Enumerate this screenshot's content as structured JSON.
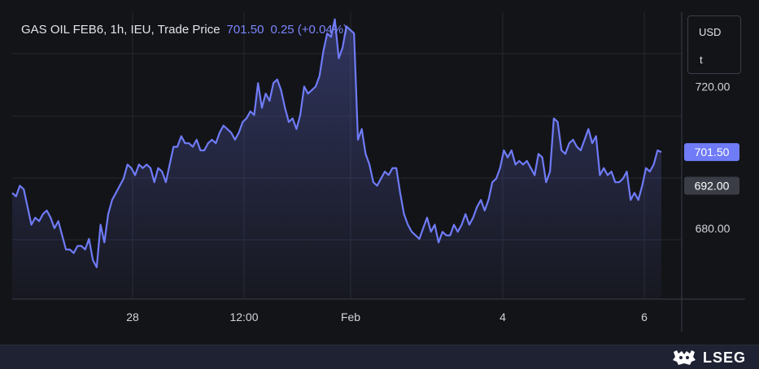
{
  "header": {
    "symbol": "GAS OIL FEB6, 1h, IEU, Trade Price",
    "price": "701.50",
    "change": "0.25 (+0.04%)"
  },
  "axis": {
    "currency": "USD",
    "unit": "t"
  },
  "footer": {
    "logo_text": "LSEG"
  },
  "colors": {
    "line": "#6f7bf7",
    "background": "#131417",
    "grid": "#24272e",
    "price_tag": "#6f7bf7",
    "prev_tag": "#3a3d46"
  },
  "chart_data": {
    "type": "area",
    "title": "GAS OIL FEB6, 1h, IEU, Trade Price",
    "x_ticks": [
      "28",
      "12:00",
      "Feb",
      "4",
      "6"
    ],
    "y_ticks": [
      {
        "value": 720,
        "label": "720.00"
      },
      {
        "value": 680,
        "label": "680.00"
      }
    ],
    "ylim": [
      660,
      741
    ],
    "price_tags": [
      {
        "value": 701.5,
        "label": "701.50",
        "kind": "last"
      },
      {
        "value": 692,
        "label": "692.00",
        "kind": "previous"
      }
    ],
    "grid": true,
    "values": [
      690,
      689,
      692,
      691,
      686,
      681,
      683,
      682,
      684,
      685,
      683,
      680,
      682,
      678,
      674,
      674,
      673,
      675,
      675,
      674,
      677,
      671,
      669,
      681,
      676,
      684,
      688,
      690,
      692,
      694,
      698,
      697,
      695,
      698,
      697,
      698,
      697,
      693,
      697,
      696,
      693,
      698,
      703,
      703,
      706,
      704,
      704,
      703,
      705,
      702,
      702,
      704,
      705,
      704,
      707,
      709,
      708,
      707,
      705,
      707,
      710,
      711,
      713,
      712,
      721,
      714,
      718,
      716,
      721,
      722,
      719,
      714,
      710,
      711,
      708,
      712,
      720,
      718,
      719,
      720,
      723,
      730,
      735,
      734,
      739,
      728,
      731,
      737,
      736,
      735,
      705,
      708,
      701,
      698,
      693,
      692,
      694,
      696,
      695,
      697,
      697,
      690,
      684,
      681,
      679,
      678,
      677,
      680,
      683,
      679,
      681,
      676,
      679,
      678,
      678,
      681,
      679,
      681,
      684,
      681,
      683,
      686,
      688,
      685,
      688,
      693,
      694,
      697,
      702,
      700,
      702,
      698,
      699,
      698,
      699,
      697,
      695,
      701,
      700,
      693,
      696,
      711,
      710,
      702,
      701,
      704,
      705,
      703,
      702,
      705,
      708,
      704,
      706,
      695,
      697,
      695,
      696,
      693,
      693,
      694,
      696,
      688,
      690,
      688,
      692,
      697,
      696,
      698,
      702,
      701.5
    ]
  }
}
